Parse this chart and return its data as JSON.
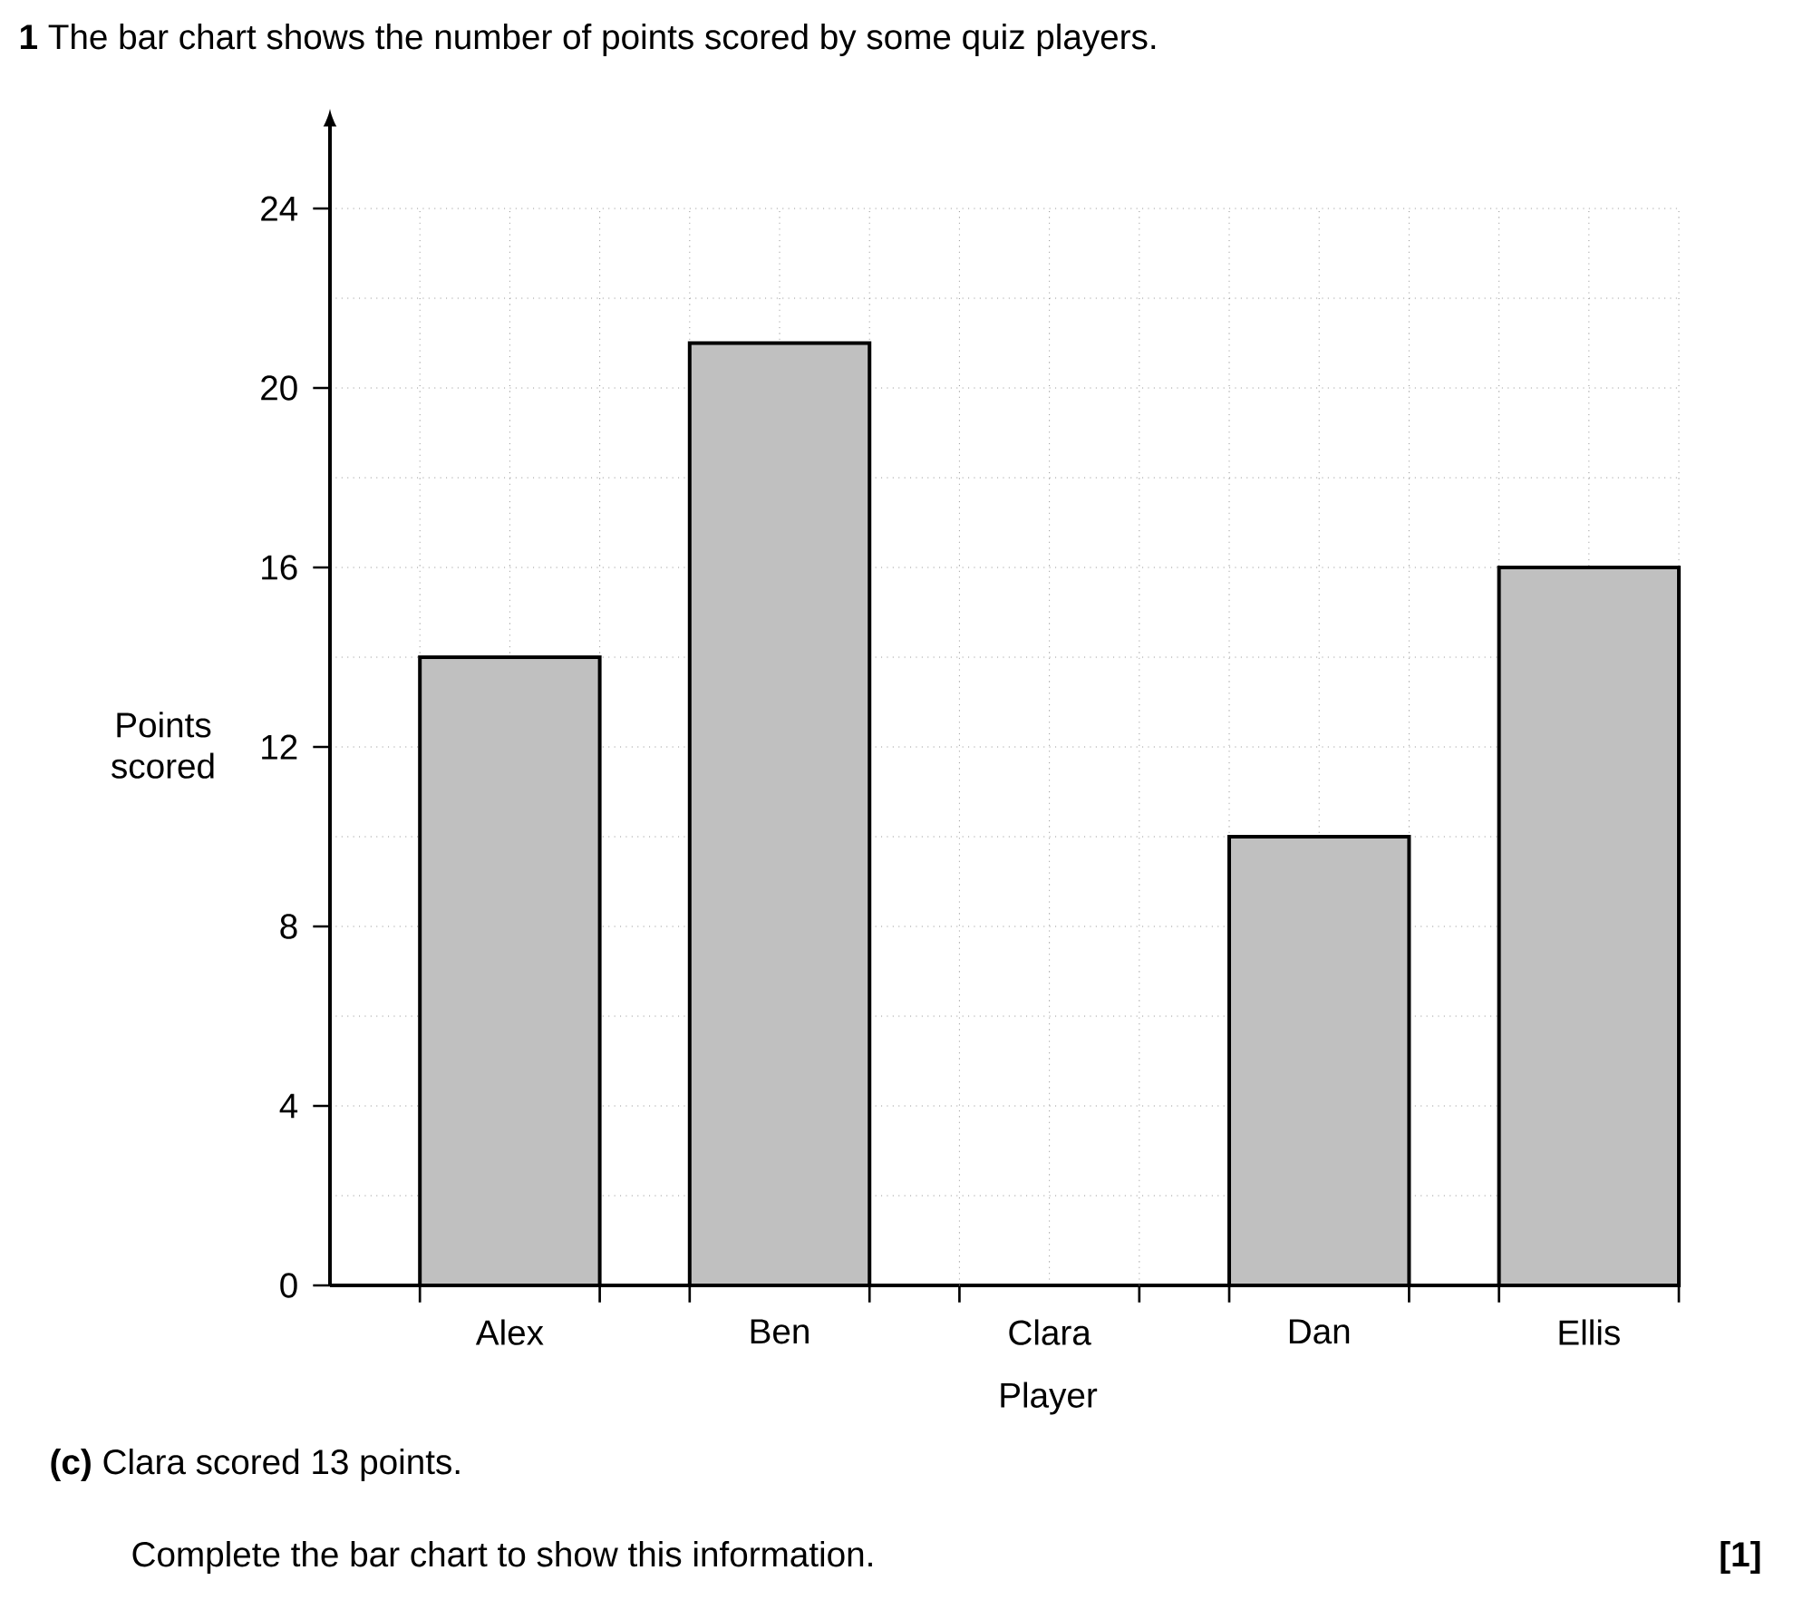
{
  "chart_data": {
    "type": "bar",
    "title": "**1** The bar chart shows the number of points scored by some quiz players.",
    "xlabel": "Player",
    "ylabel": "Points scored",
    "categories": [
      "Alex",
      "Ben",
      "Clara",
      "Dan",
      "Ellis"
    ],
    "values": [
      14,
      21,
      null,
      10,
      16
    ],
    "color": "#c0c0c0",
    "ylim": [
      0,
      24
    ],
    "yticks": [
      0,
      4,
      8,
      12,
      16,
      20,
      24
    ],
    "grid": true,
    "annotations": [
      "**(c)** Clara scored 13 points.",
      "Complete the bar chart to show this information.",
      "[1]"
    ]
  }
}
